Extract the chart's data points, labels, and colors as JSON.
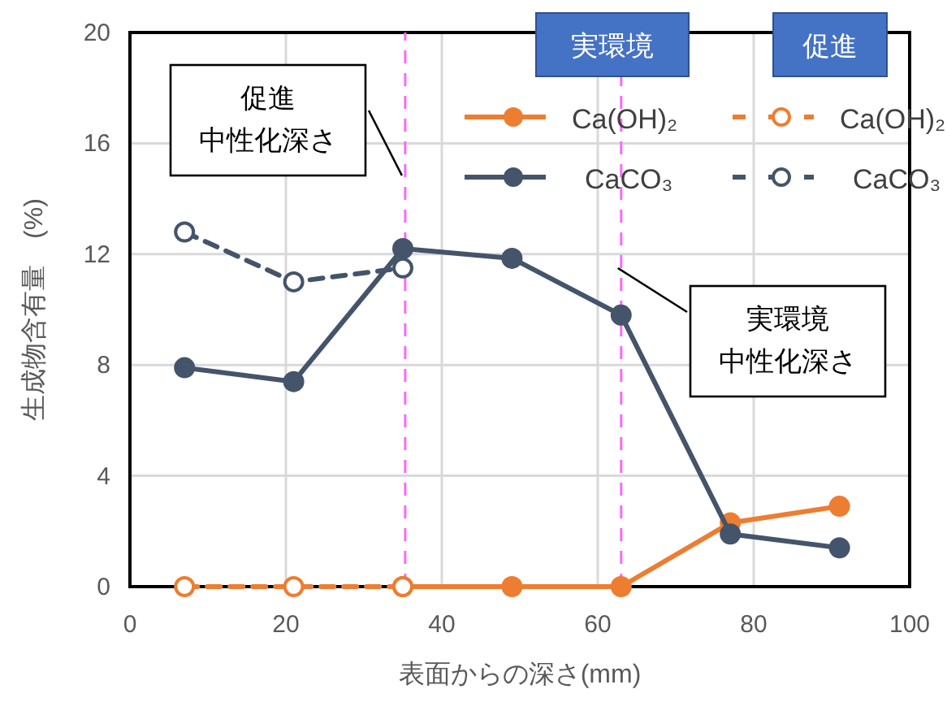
{
  "chart_data": {
    "type": "line",
    "xlabel": "表面からの深さ(mm)",
    "ylabel": "生成物含有量　(%)",
    "xlim": [
      0,
      100
    ],
    "xticks": [
      0,
      20,
      40,
      60,
      80,
      100
    ],
    "ylim": [
      0,
      20
    ],
    "yticks": [
      0,
      4,
      8,
      12,
      16,
      20
    ],
    "grid": true,
    "legend": "top right",
    "marker": "circle",
    "series": [
      {
        "name": "Ca(OH)₂",
        "color": "#ed7d31",
        "x": [
          35,
          49,
          63,
          77,
          91
        ],
        "values": [
          0,
          0,
          0,
          2.3,
          2.9
        ],
        "line_style": "solid"
      },
      {
        "name": "CaCO₃",
        "color": "#44546a",
        "x": [
          7,
          21,
          35,
          49,
          63,
          77,
          91
        ],
        "values": [
          7.9,
          7.4,
          12.2,
          11.85,
          9.8,
          1.9,
          1.4
        ],
        "line_style": "solid"
      },
      {
        "name": "Ca(OH)₂",
        "color": "#ed7d31",
        "x": [
          7,
          21,
          35
        ],
        "values": [
          0,
          0,
          0
        ],
        "line_style": "dashed"
      },
      {
        "name": "CaCO₃",
        "color": "#44546a",
        "x": [
          7,
          21,
          35
        ],
        "values": [
          12.8,
          11.0,
          11.5
        ],
        "line_style": "dashed"
      }
    ],
    "ref_lines": [
      {
        "axis": "x",
        "value": 35.3,
        "label": "促進中性化深さ",
        "color": "#ff66ff",
        "line_style": "dashed"
      },
      {
        "axis": "x",
        "value": 63,
        "label": "実環境中性化深さ",
        "color": "#ff66ff",
        "line_style": "dashed"
      }
    ],
    "annotations": [
      "実環境",
      "促進"
    ]
  }
}
